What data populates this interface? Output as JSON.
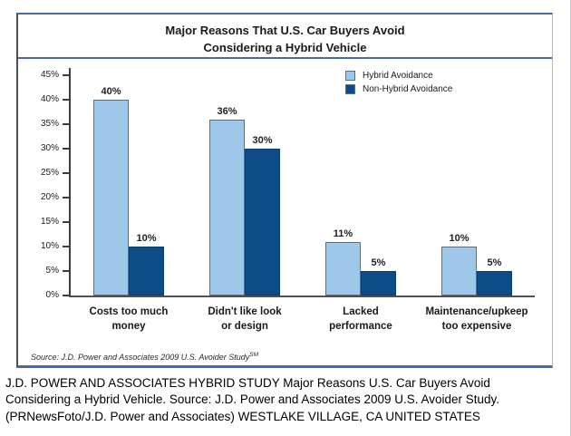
{
  "page": {
    "caption_lines": [
      "J.D. POWER AND ASSOCIATES HYBRID STUDY Major Reasons U.S. Car Buyers Avoid",
      "Considering a Hybrid Vehicle. Source: J.D. Power and Associates 2009 U.S. Avoider Study.",
      "(PRNewsFoto/J.D. Power and Associates) WESTLAKE VILLAGE, CA UNITED STATES"
    ]
  },
  "chart": {
    "title_lines": [
      "Major Reasons That U.S. Car Buyers Avoid",
      "Considering a Hybrid Vehicle"
    ],
    "source_text": "Source: J.D. Power and Associates 2009 U.S. Avoider Study",
    "source_superscript": "SM",
    "colors": {
      "accent_rule": "#4A69AD",
      "axis": "#3D3D3D",
      "light_series": "#9EC7E9",
      "dark_series": "#0E4C87",
      "bar_border": "#5C6F82"
    }
  },
  "chart_data": {
    "type": "bar",
    "title": "Major Reasons That U.S. Car Buyers Avoid Considering a Hybrid Vehicle",
    "xlabel": "",
    "ylabel": "",
    "categories": [
      "Costs too much money",
      "Didn't like look or design",
      "Lacked performance",
      "Maintenance/upkeep too expensive"
    ],
    "category_label_lines": [
      [
        "Costs too much",
        "money"
      ],
      [
        "Didn't like look",
        "or design"
      ],
      [
        "Lacked",
        "performance"
      ],
      [
        "Maintenance/upkeep",
        "too expensive"
      ]
    ],
    "series": [
      {
        "name": "Hybrid Avoidance",
        "color": "#9EC7E9",
        "values": [
          40,
          36,
          11,
          10
        ]
      },
      {
        "name": "Non-Hybrid Avoidance",
        "color": "#0E4C87",
        "values": [
          10,
          30,
          5,
          5
        ]
      }
    ],
    "value_labels": [
      [
        "40%",
        "36%",
        "11%",
        "10%"
      ],
      [
        "10%",
        "30%",
        "5%",
        "5%"
      ]
    ],
    "ylim": [
      0,
      45
    ],
    "yticks": [
      "45%",
      "40%",
      "35%",
      "30%",
      "25%",
      "20%",
      "15%",
      "10%",
      "5%",
      "0%"
    ],
    "legend_position": "top-right",
    "grid": false
  }
}
